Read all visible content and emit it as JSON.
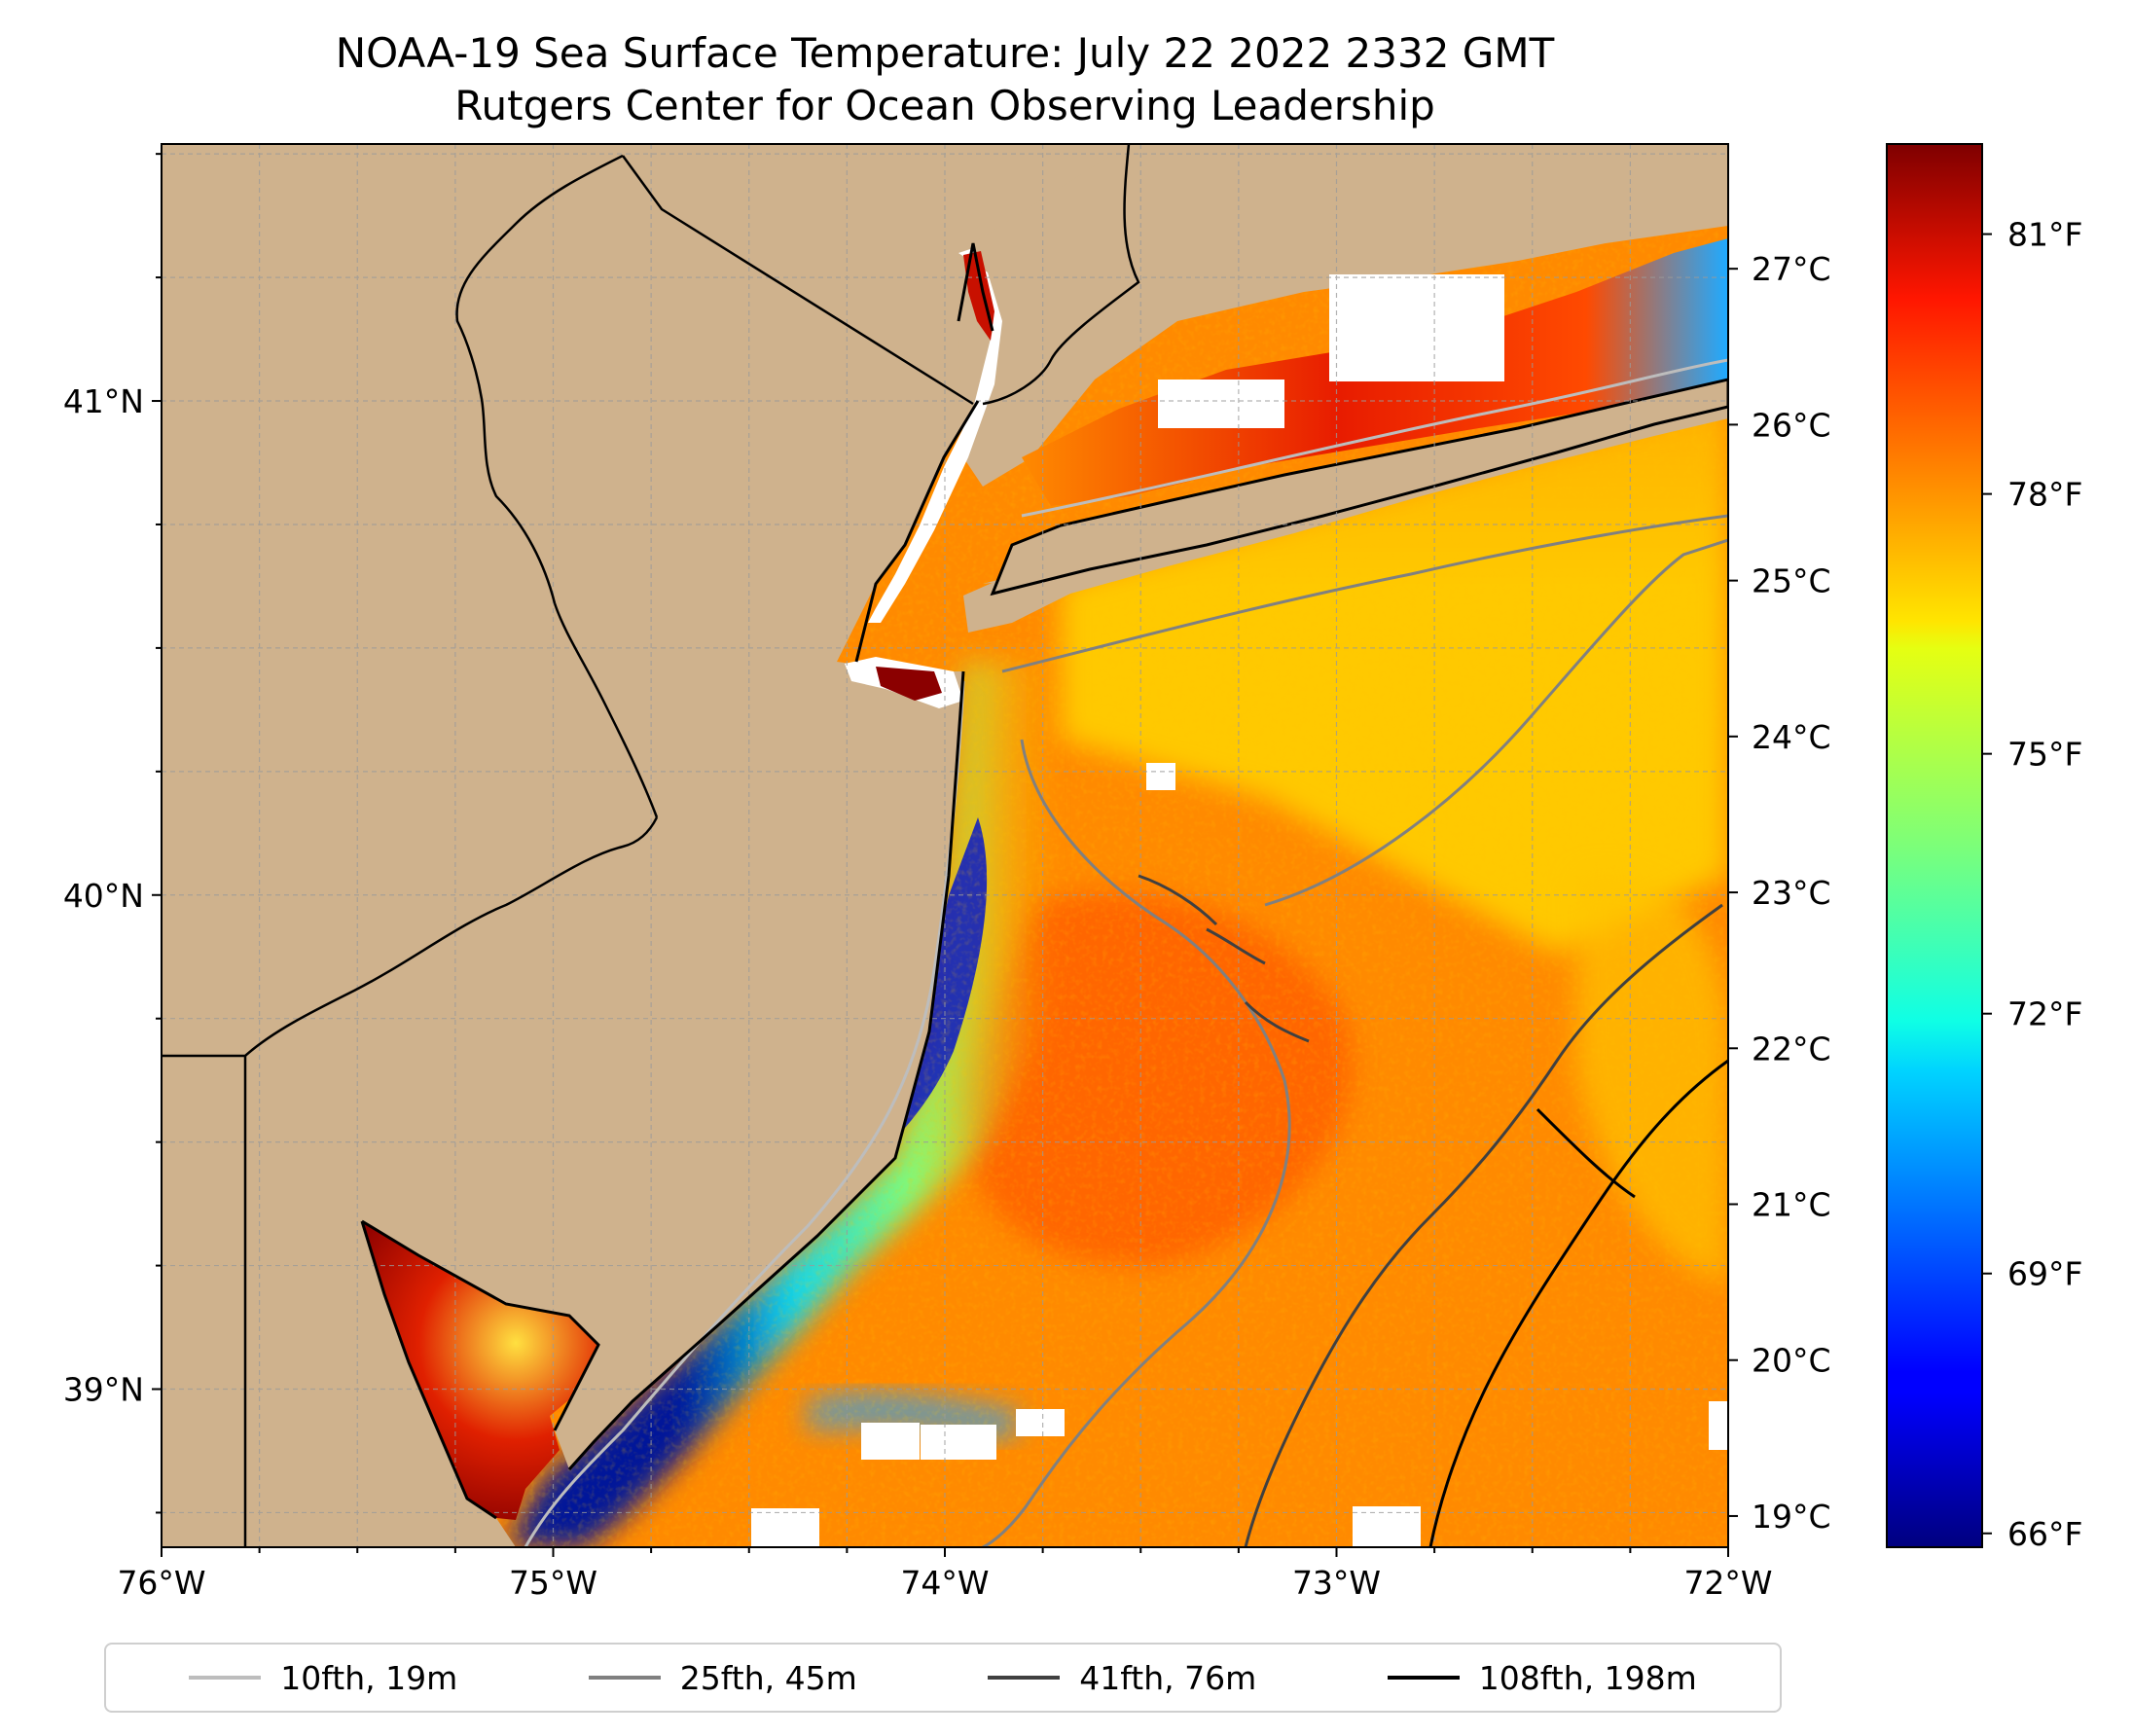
{
  "title": "NOAA-19 Sea Surface Temperature: July 22 2022 2332 GMT",
  "subtitle": "Rutgers Center for Ocean Observing Leadership",
  "map": {
    "lon_range": [
      -76,
      -72
    ],
    "lat_range": [
      38.68,
      41.52
    ],
    "lon_ticks": [
      {
        "value": -76,
        "label": "76°W"
      },
      {
        "value": -75,
        "label": "75°W"
      },
      {
        "value": -74,
        "label": "74°W"
      },
      {
        "value": -73,
        "label": "73°W"
      },
      {
        "value": -72,
        "label": "72°W"
      }
    ],
    "lat_ticks": [
      {
        "value": 41,
        "label": "41°N"
      },
      {
        "value": 40,
        "label": "40°N"
      },
      {
        "value": 39,
        "label": "39°N"
      }
    ],
    "grid": true,
    "grid_step_deg": 0.25,
    "land_color": "#cfb28d",
    "coastline_color": "#000000",
    "colormap": "jet"
  },
  "colorbar": {
    "celsius_range": [
      18.8,
      27.8
    ],
    "celsius_ticks": [
      {
        "value": 19,
        "label": "19°C"
      },
      {
        "value": 20,
        "label": "20°C"
      },
      {
        "value": 21,
        "label": "21°C"
      },
      {
        "value": 22,
        "label": "22°C"
      },
      {
        "value": 23,
        "label": "23°C"
      },
      {
        "value": 24,
        "label": "24°C"
      },
      {
        "value": 25,
        "label": "25°C"
      },
      {
        "value": 26,
        "label": "26°C"
      },
      {
        "value": 27,
        "label": "27°C"
      }
    ],
    "fahrenheit_ticks": [
      {
        "value": 66,
        "label": "66°F"
      },
      {
        "value": 69,
        "label": "69°F"
      },
      {
        "value": 72,
        "label": "72°F"
      },
      {
        "value": 75,
        "label": "75°F"
      },
      {
        "value": 78,
        "label": "78°F"
      },
      {
        "value": 81,
        "label": "81°F"
      }
    ]
  },
  "legend": {
    "items": [
      {
        "label": "10fth, 19m",
        "color": "#bdbdbd"
      },
      {
        "label": "25fth, 45m",
        "color": "#808080"
      },
      {
        "label": "41fth, 76m",
        "color": "#404040"
      },
      {
        "label": "108fth, 198m",
        "color": "#000000"
      }
    ]
  }
}
